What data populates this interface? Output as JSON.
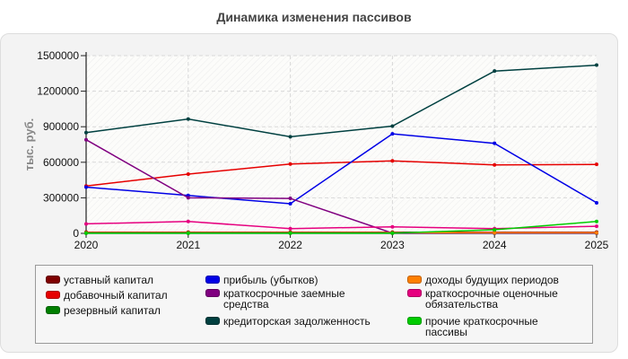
{
  "chart_data": {
    "type": "line",
    "title": "Динамика изменения пассивов",
    "ylabel": "тыс. руб.",
    "xlabel": "",
    "x": [
      "2020",
      "2021",
      "2022",
      "2023",
      "2024",
      "2025"
    ],
    "ylim": [
      0,
      1500000
    ],
    "yticks": [
      "0",
      "300000",
      "600000",
      "900000",
      "1200000",
      "1500000"
    ],
    "grid": true,
    "legend_position": "bottom",
    "series": [
      {
        "name": "уставный капитал",
        "color": "#7f0000",
        "values": [
          10000,
          10000,
          10000,
          10000,
          10000,
          10000
        ]
      },
      {
        "name": "добавочный капитал",
        "color": "#e60000",
        "values": [
          400000,
          500000,
          585000,
          612000,
          578000,
          582000
        ]
      },
      {
        "name": "резервный капитал",
        "color": "#007f00",
        "values": [
          1000,
          1000,
          1000,
          1000,
          1000,
          1000
        ]
      },
      {
        "name": "прибыль (убытков)",
        "color": "#0000e6",
        "values": [
          390000,
          320000,
          250000,
          840000,
          760000,
          258000
        ]
      },
      {
        "name": "краткосрочные заемные средства",
        "color": "#800080",
        "values": [
          790000,
          300000,
          295000,
          2000,
          2000,
          2000
        ]
      },
      {
        "name": "кредиторская задолженность",
        "color": "#004040",
        "values": [
          850000,
          965000,
          815000,
          905000,
          1370000,
          1420000
        ]
      },
      {
        "name": "доходы будущих периодов",
        "color": "#ff7f00",
        "values": [
          5000,
          5000,
          5000,
          5000,
          5000,
          5000
        ]
      },
      {
        "name": "краткосрочные оценочные обязательства",
        "color": "#e6007f",
        "values": [
          80000,
          100000,
          40000,
          55000,
          40000,
          60000
        ]
      },
      {
        "name": "прочие краткосрочные пассивы",
        "color": "#00cc00",
        "values": [
          2000,
          2000,
          2000,
          2000,
          30000,
          100000
        ]
      }
    ]
  }
}
